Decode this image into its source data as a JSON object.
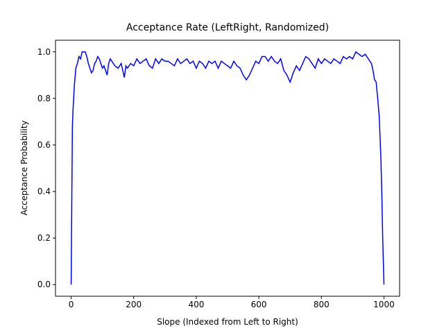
{
  "chart_data": {
    "type": "line",
    "title": "Acceptance Rate (LeftRight, Randomized)",
    "x_label": "Slope (Indexed from Left to Right)",
    "y_label": "Acceptance Probability",
    "xlim": [
      -50,
      1050
    ],
    "ylim": [
      -0.05,
      1.05
    ],
    "xticks": [
      0,
      200,
      400,
      600,
      800,
      1000
    ],
    "yticks": [
      {
        "value": 0,
        "label": "0.0"
      },
      0.2,
      0.4,
      0.6,
      0.8,
      {
        "value": 1,
        "label": "1.0"
      }
    ],
    "grid": false,
    "series": [
      {
        "name": "Acceptance Probability",
        "color": "#0000ff",
        "x": [
          0,
          2,
          4,
          6,
          8,
          10,
          15,
          20,
          25,
          30,
          35,
          40,
          45,
          50,
          55,
          60,
          65,
          70,
          75,
          80,
          85,
          90,
          95,
          100,
          105,
          110,
          115,
          120,
          125,
          130,
          140,
          150,
          160,
          165,
          170,
          175,
          180,
          190,
          200,
          210,
          220,
          230,
          240,
          250,
          260,
          270,
          280,
          290,
          300,
          310,
          320,
          330,
          340,
          350,
          360,
          370,
          380,
          390,
          400,
          410,
          420,
          430,
          440,
          450,
          460,
          470,
          480,
          490,
          500,
          510,
          520,
          530,
          540,
          550,
          560,
          570,
          580,
          590,
          600,
          610,
          620,
          630,
          640,
          650,
          660,
          670,
          680,
          690,
          700,
          710,
          720,
          730,
          740,
          750,
          760,
          770,
          780,
          790,
          800,
          810,
          820,
          830,
          840,
          850,
          860,
          870,
          880,
          890,
          900,
          910,
          920,
          930,
          940,
          950,
          960,
          965,
          970,
          975,
          980,
          985,
          990,
          993,
          996,
          1000
        ],
        "values": [
          0.0,
          0.35,
          0.68,
          0.75,
          0.8,
          0.85,
          0.93,
          0.95,
          0.98,
          0.97,
          1.0,
          1.0,
          1.0,
          0.98,
          0.95,
          0.93,
          0.91,
          0.92,
          0.95,
          0.96,
          0.98,
          0.97,
          0.95,
          0.93,
          0.94,
          0.92,
          0.9,
          0.95,
          0.97,
          0.96,
          0.94,
          0.93,
          0.95,
          0.92,
          0.89,
          0.94,
          0.93,
          0.95,
          0.94,
          0.97,
          0.95,
          0.96,
          0.97,
          0.94,
          0.93,
          0.97,
          0.95,
          0.97,
          0.96,
          0.96,
          0.95,
          0.94,
          0.97,
          0.95,
          0.96,
          0.97,
          0.95,
          0.96,
          0.93,
          0.96,
          0.95,
          0.93,
          0.96,
          0.95,
          0.96,
          0.93,
          0.96,
          0.95,
          0.94,
          0.93,
          0.96,
          0.94,
          0.93,
          0.9,
          0.88,
          0.9,
          0.93,
          0.96,
          0.95,
          0.98,
          0.98,
          0.96,
          0.98,
          0.96,
          0.95,
          0.97,
          0.92,
          0.9,
          0.87,
          0.91,
          0.94,
          0.92,
          0.95,
          0.98,
          0.97,
          0.95,
          0.93,
          0.97,
          0.95,
          0.97,
          0.96,
          0.95,
          0.97,
          0.96,
          0.95,
          0.98,
          0.97,
          0.98,
          0.97,
          1.0,
          0.99,
          0.98,
          0.99,
          0.97,
          0.95,
          0.92,
          0.88,
          0.87,
          0.8,
          0.72,
          0.55,
          0.4,
          0.2,
          0.0
        ]
      }
    ]
  }
}
